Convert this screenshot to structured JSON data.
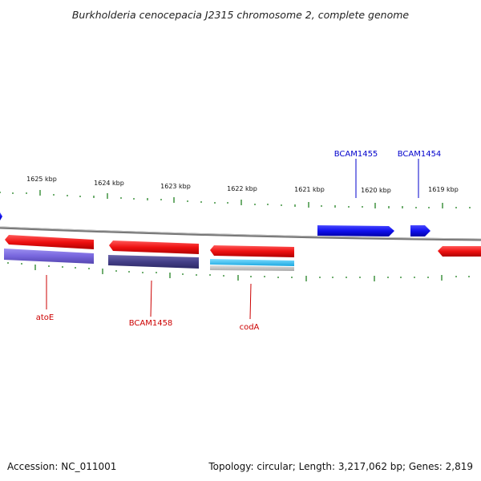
{
  "title": "Burkholderia cenocepacia J2315 chromosome 2, complete genome",
  "footer": {
    "accession": "Accession: NC_011001",
    "topology": "Topology: circular; Length: 3,217,062 bp; Genes: 2,819"
  },
  "scale_labels": [
    "1625 kbp",
    "1624 kbp",
    "1623 kbp",
    "1622 kbp",
    "1621 kbp",
    "1620 kbp",
    "1619 kbp"
  ],
  "genes": {
    "upper": [
      {
        "name": "BCAM1455",
        "color": "#0000cc"
      },
      {
        "name": "BCAM1454",
        "color": "#0000cc"
      }
    ],
    "lower": [
      {
        "name": "atoE",
        "color": "#cc0000"
      },
      {
        "name": "BCAM1458",
        "color": "#cc0000"
      },
      {
        "name": "codA",
        "color": "#cc0000"
      }
    ]
  },
  "colors": {
    "forward_strand": "#1010ee",
    "reverse_strand": "#ee1111",
    "backbone": "#888888",
    "tick": "#117711",
    "cog_purple": "#7766dd",
    "cog_navy": "#443f88",
    "cog_cyan": "#22bbee",
    "cog_gray": "#bbbbbb"
  }
}
